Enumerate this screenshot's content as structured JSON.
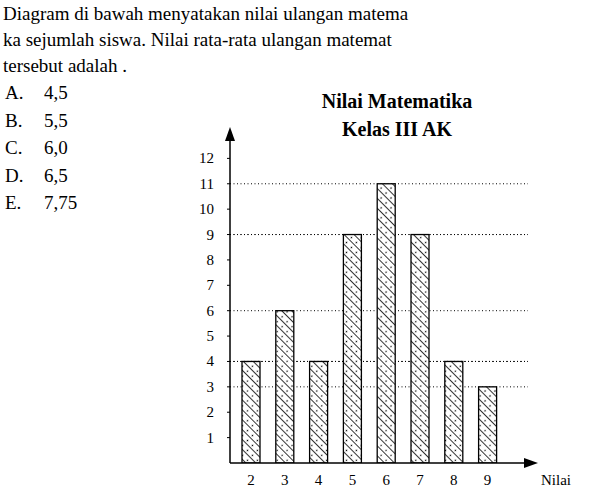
{
  "question": {
    "lines": [
      "Diagram di bawah menyatakan nilai ulangan matema",
      "ka sejumlah siswa. Nilai rata-rata ulangan matemat",
      "tersebut adalah ."
    ]
  },
  "options": [
    {
      "letter": "A.",
      "text": "4,5"
    },
    {
      "letter": "B.",
      "text": "5,5"
    },
    {
      "letter": "C.",
      "text": "6,0"
    },
    {
      "letter": "D.",
      "text": "6,5"
    },
    {
      "letter": "E.",
      "text": "7,75"
    }
  ],
  "chart_data": {
    "type": "bar",
    "title": "Nilai Matematika",
    "subtitle": "Kelas III AK",
    "x_label": "Nilai",
    "categories": [
      "2",
      "3",
      "4",
      "5",
      "6",
      "7",
      "8",
      "9"
    ],
    "values": [
      4,
      6,
      4,
      9,
      11,
      9,
      4,
      3
    ],
    "color": "#000000",
    "ylim": [
      0,
      13
    ],
    "yticks": [
      1,
      2,
      3,
      4,
      5,
      6,
      7,
      8,
      9,
      10,
      11,
      12
    ]
  }
}
